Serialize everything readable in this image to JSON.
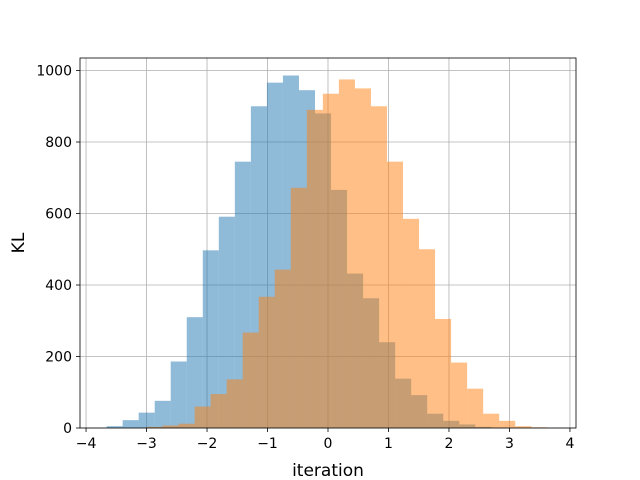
{
  "chart_data": {
    "type": "bar",
    "subtype": "overlapping-histogram",
    "title": "",
    "xlabel": "iteration",
    "ylabel": "KL",
    "xlim": [
      -4.1,
      4.1
    ],
    "ylim": [
      0,
      1035
    ],
    "xticks": [
      -4,
      -3,
      -2,
      -1,
      0,
      1,
      2,
      3,
      4
    ],
    "xtick_labels": [
      "−4",
      "−3",
      "−2",
      "−1",
      "0",
      "1",
      "2",
      "3",
      "4"
    ],
    "yticks": [
      0,
      200,
      400,
      600,
      800,
      1000
    ],
    "ytick_labels": [
      "0",
      "200",
      "400",
      "600",
      "800",
      "1000"
    ],
    "grid": true,
    "legend": "none",
    "bin_width": 0.265,
    "series": [
      {
        "color": "#1f77b4",
        "opacity": 0.5,
        "bin_start": -3.66,
        "values": [
          5,
          22,
          43,
          76,
          186,
          310,
          497,
          591,
          745,
          900,
          966,
          986,
          945,
          880,
          666,
          432,
          363,
          240,
          138,
          92,
          40,
          20,
          10,
          3
        ]
      },
      {
        "color": "#ff7f0e",
        "opacity": 0.5,
        "bin_start": -3.0,
        "values": [
          3,
          7,
          12,
          60,
          95,
          136,
          267,
          367,
          443,
          672,
          890,
          935,
          975,
          950,
          900,
          745,
          585,
          500,
          305,
          183,
          110,
          40,
          20,
          5,
          2
        ]
      }
    ]
  }
}
